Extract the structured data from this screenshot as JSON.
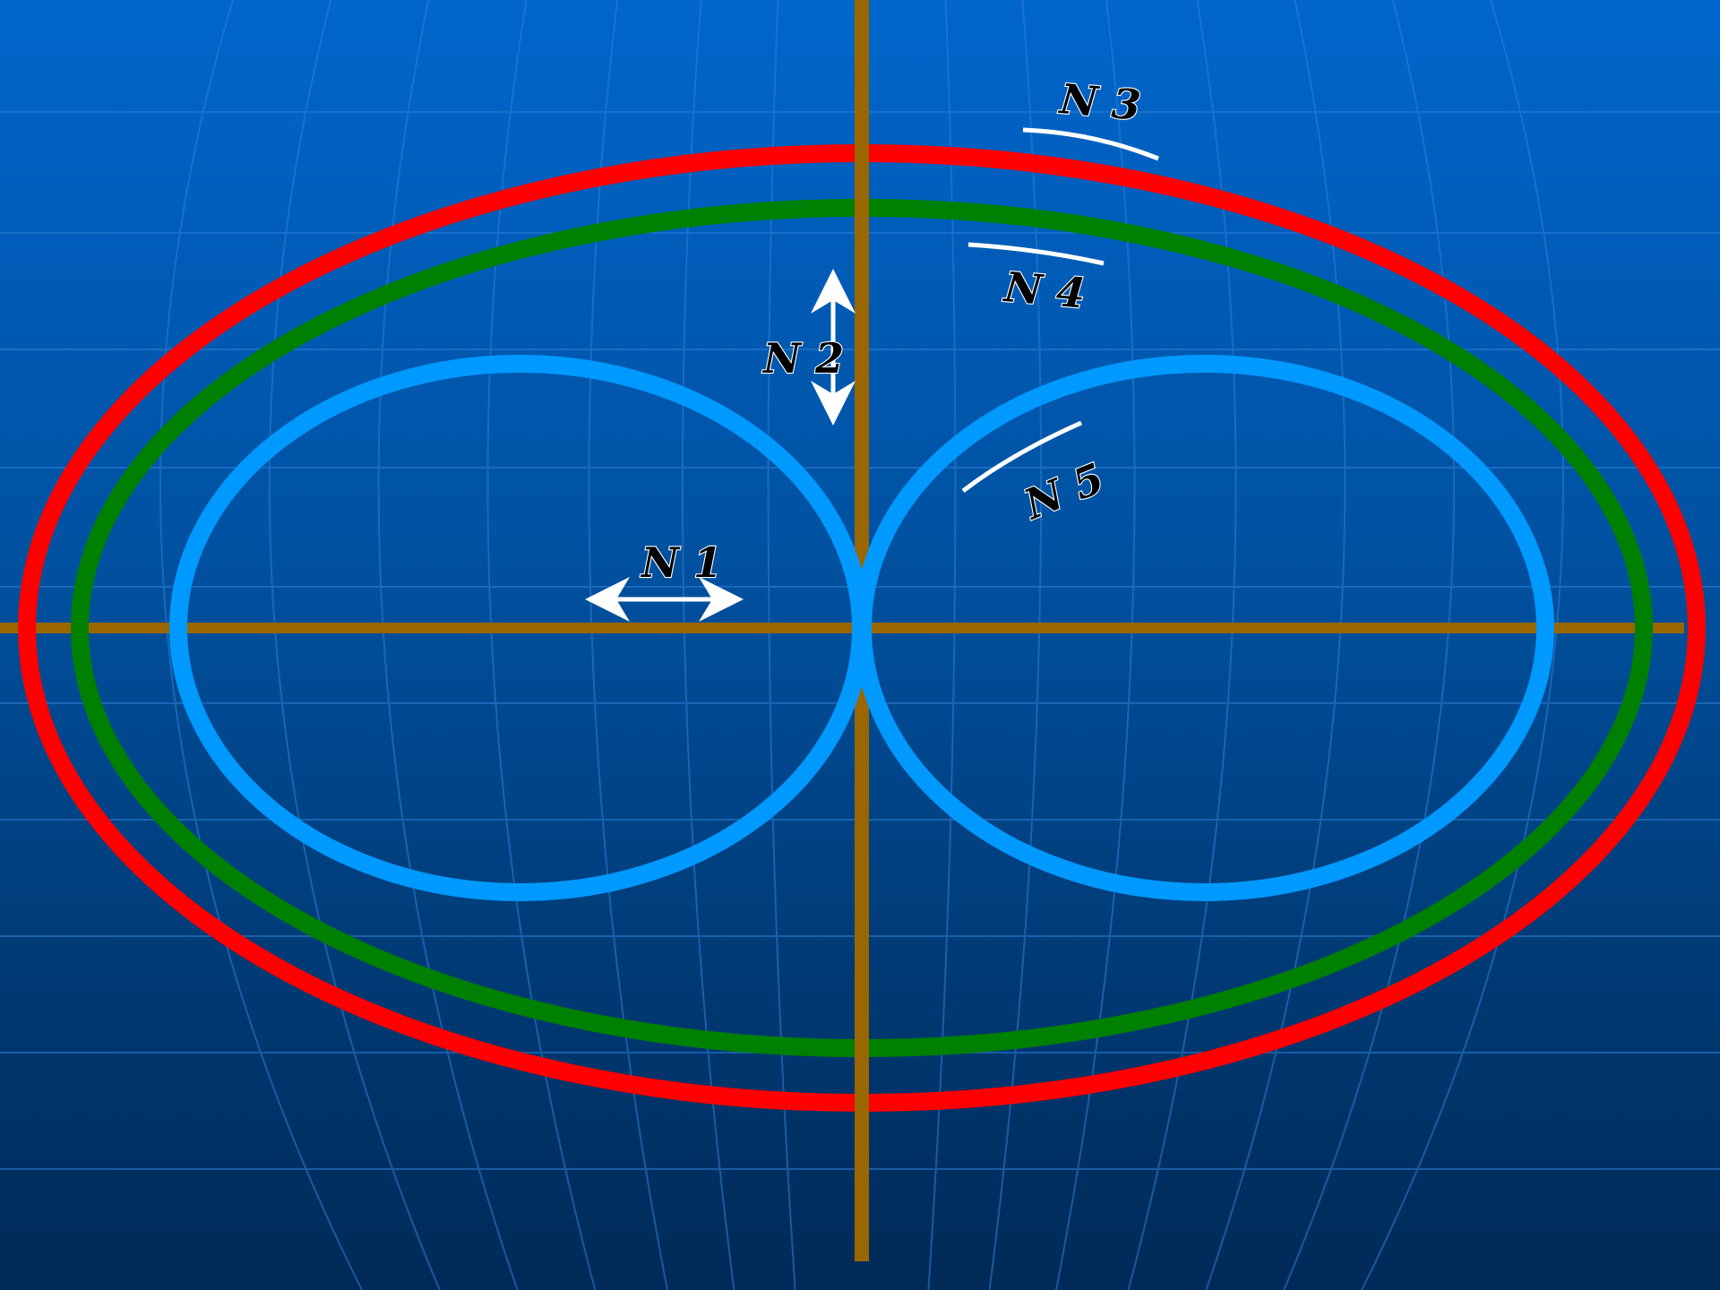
{
  "colors": {
    "background_top": "#0066cc",
    "background_bottom": "#002a57",
    "grid_line": "#2f7fd6",
    "axis": "#996600",
    "outer_ellipse": "#ff0000",
    "middle_ellipse": "#008000",
    "inner_loops": "#0099ff",
    "markers": "#ffffff"
  },
  "labels": {
    "n1": "N 1",
    "n2": "N 2",
    "n3": "N 3",
    "n4": "N 4",
    "n5": "N 5"
  },
  "shapes": {
    "outer_ellipse": "red ellipse",
    "middle_ellipse": "green ellipse",
    "inner_loops": "two blue lobes touching at the center"
  }
}
